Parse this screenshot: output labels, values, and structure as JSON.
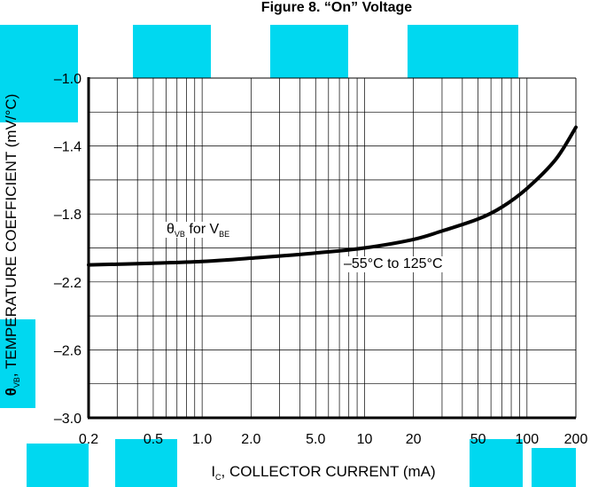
{
  "figure_title": "Figure 8. “On” Voltage",
  "x_axis": {
    "symbol": "I",
    "symbol_sub": "C",
    "label_rest": ", COLLECTOR CURRENT (mA)"
  },
  "y_axis": {
    "symbol": "θ",
    "symbol_sub": "VB",
    "label_rest": ", TEMPERATURE COEFFICIENT (mV/°C)"
  },
  "curve_label": {
    "theta": "θ",
    "theta_sub": "VB",
    "middle": " for V",
    "v_sub": "BE"
  },
  "range_label": "–55°C to 125°C",
  "colors": {
    "watermark": "#00d8f0",
    "axis": "#000000",
    "curve": "#000000"
  },
  "chart_data": {
    "type": "line",
    "x_scale": "log",
    "xlim": [
      0.2,
      200
    ],
    "ylim": [
      -3.0,
      -1.0
    ],
    "x_ticks": [
      0.2,
      0.5,
      1.0,
      2.0,
      5.0,
      10,
      20,
      50,
      100,
      200
    ],
    "x_tick_labels": [
      "0.2",
      "0.5",
      "1.0",
      "2.0",
      "5.0",
      "10",
      "20",
      "50",
      "100",
      "200"
    ],
    "y_ticks": [
      -1.0,
      -1.4,
      -1.8,
      -2.2,
      -2.6,
      -3.0
    ],
    "y_tick_labels": [
      "–1.0",
      "–1.4",
      "–1.8",
      "–2.2",
      "–2.6",
      "–3.0"
    ],
    "grid": true,
    "series": [
      {
        "name": "θVB for VBE",
        "x": [
          0.2,
          0.5,
          1.0,
          2.0,
          5.0,
          10,
          20,
          30,
          50,
          70,
          100,
          150,
          200
        ],
        "y": [
          -2.1,
          -2.09,
          -2.08,
          -2.06,
          -2.03,
          -2.0,
          -1.95,
          -1.9,
          -1.83,
          -1.76,
          -1.65,
          -1.48,
          -1.29
        ]
      }
    ]
  }
}
